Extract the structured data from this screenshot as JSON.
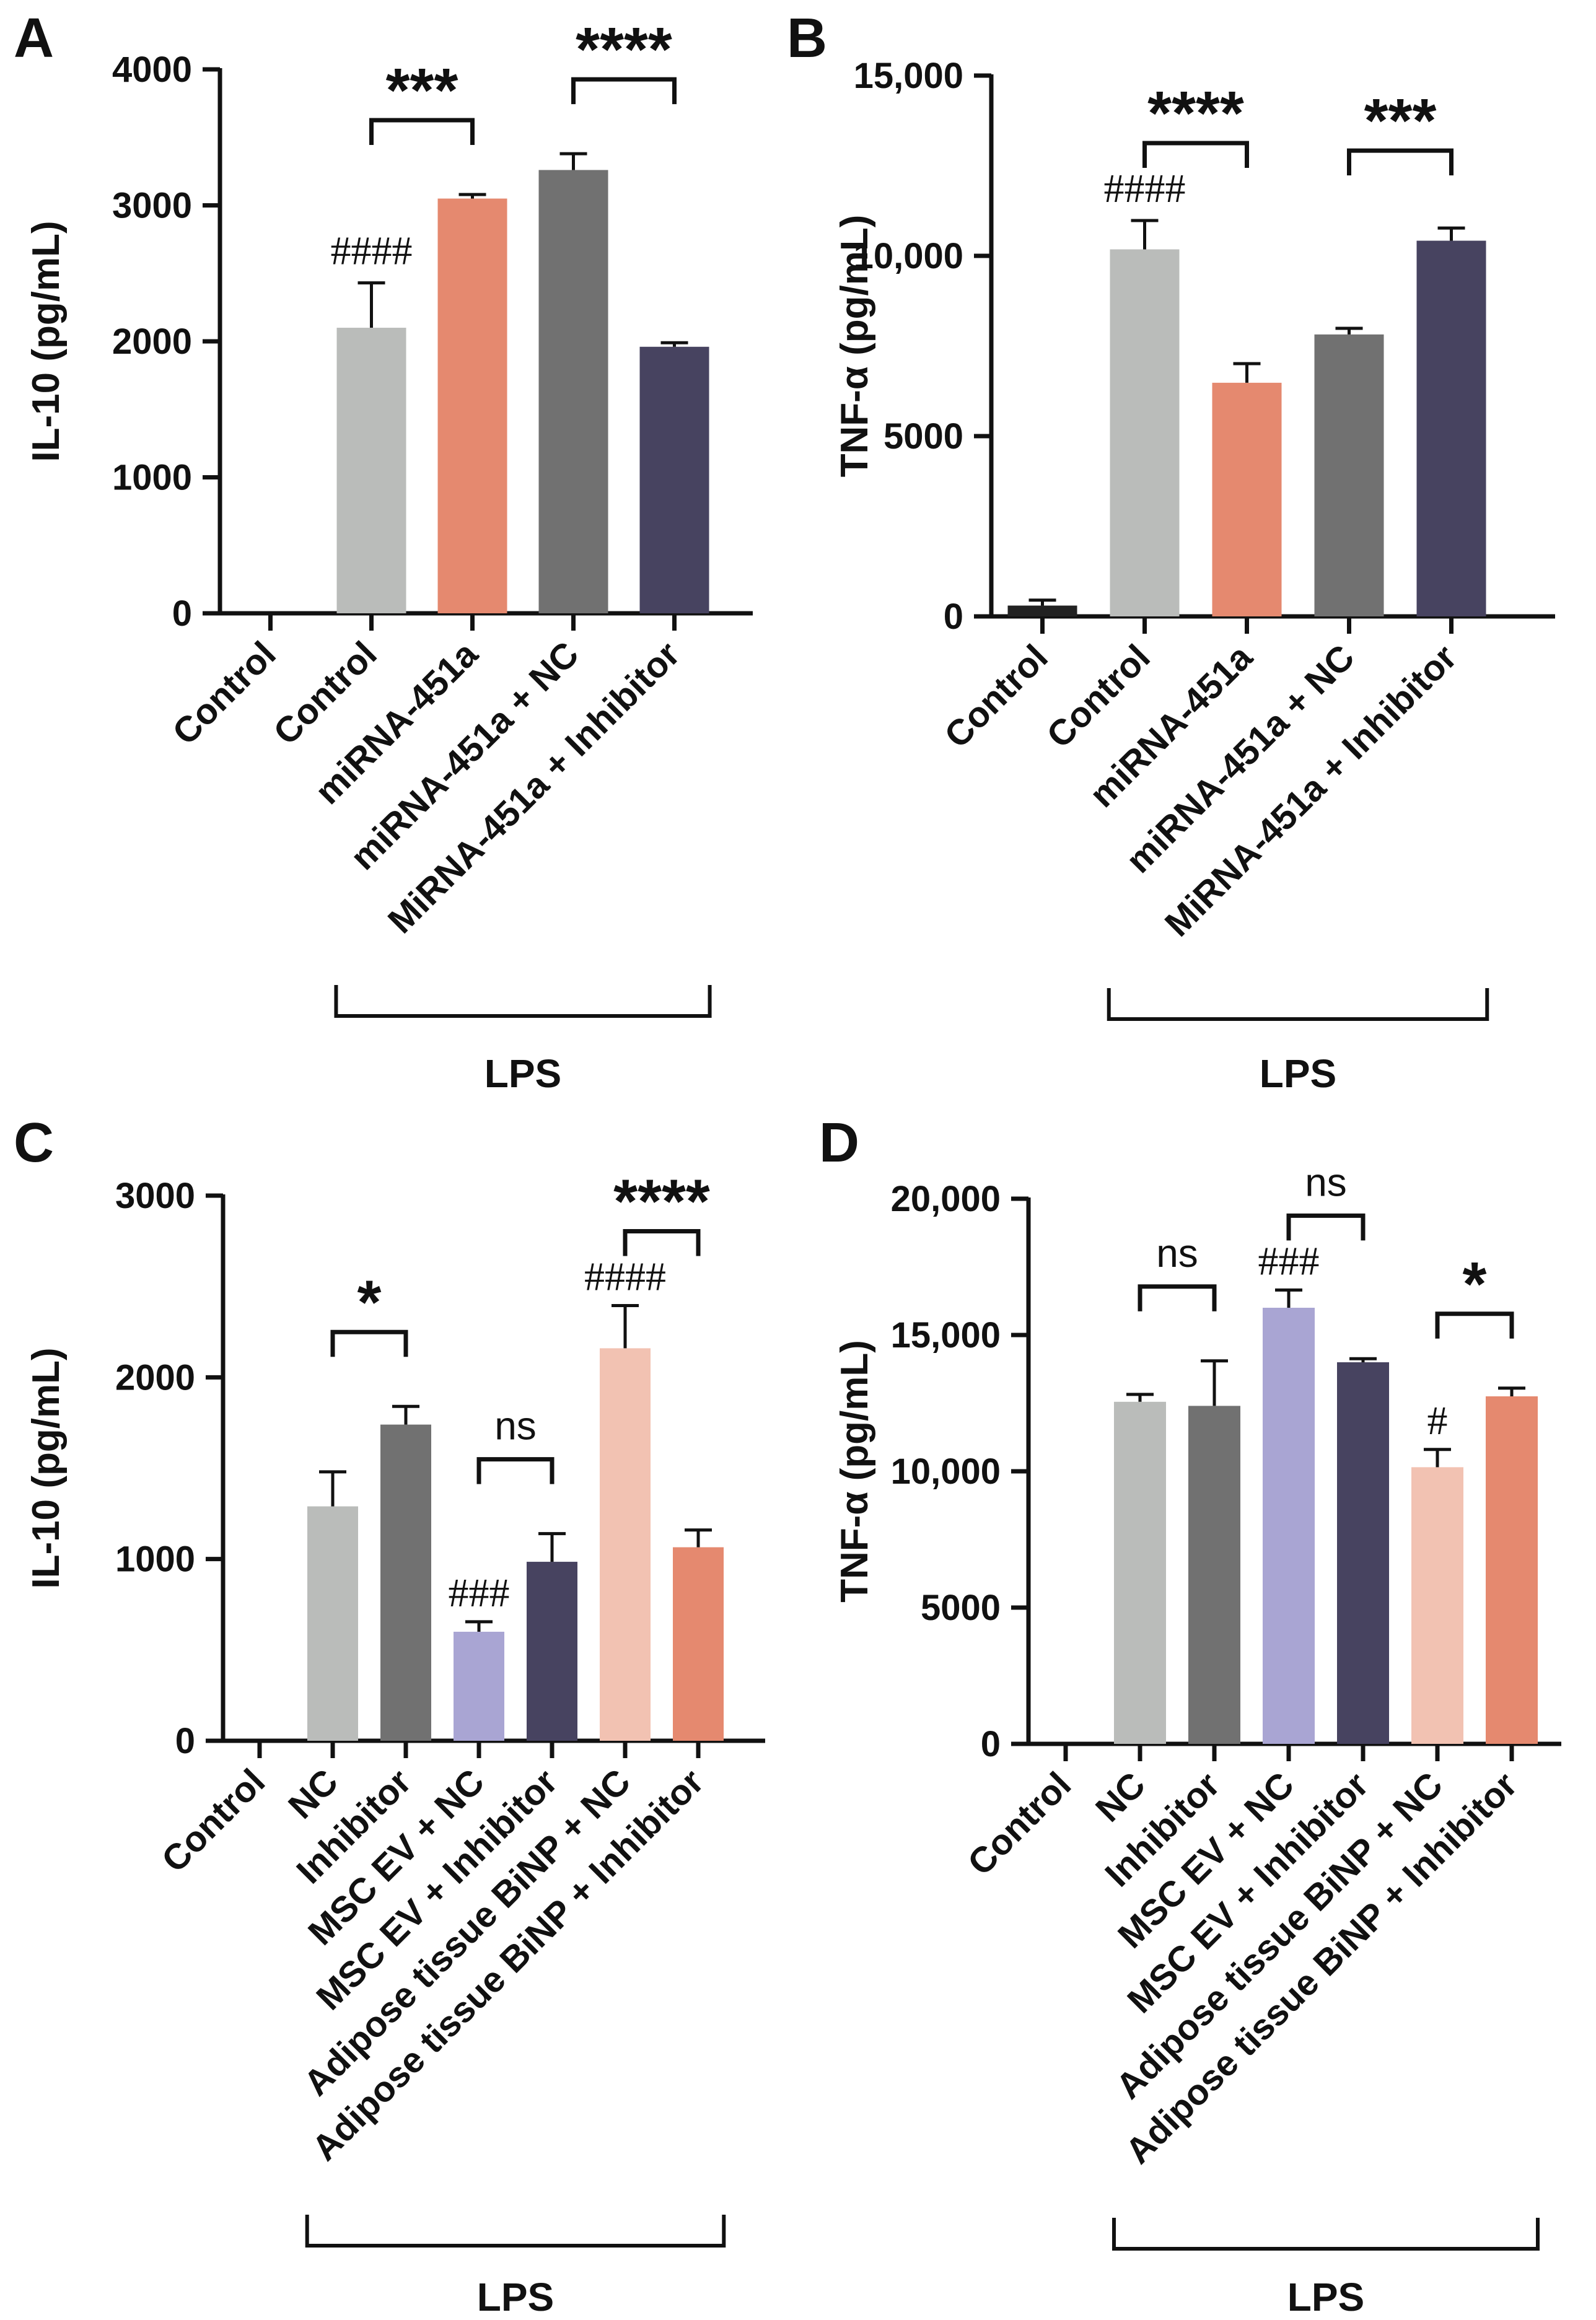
{
  "chart_data": [
    {
      "panel_label": "A",
      "type": "bar",
      "ylabel": "IL-10 (pg/mL)",
      "ylim": [
        0,
        4000
      ],
      "yticks": [
        0,
        1000,
        2000,
        3000,
        4000
      ],
      "ytick_labels": [
        "0",
        "1000",
        "2000",
        "3000",
        "4000"
      ],
      "categories": [
        "Control",
        "Control",
        "miRNA-451a",
        "miRNA-451a + NC",
        "MiRNA-451a + Inhibitor"
      ],
      "values": [
        0,
        2100,
        3050,
        3260,
        1960
      ],
      "errors": [
        0,
        330,
        30,
        120,
        30
      ],
      "colors": [
        "#222222",
        "#babcba",
        "#e5896f",
        "#717171",
        "#474360"
      ],
      "group_label": "LPS",
      "group_span": [
        1,
        4
      ],
      "hash_labels": [
        {
          "bar": 1,
          "text": "####"
        }
      ],
      "significance": [
        {
          "from": 1,
          "to": 2,
          "label": "***"
        },
        {
          "from": 3,
          "to": 4,
          "label": "****"
        }
      ]
    },
    {
      "panel_label": "B",
      "type": "bar",
      "ylabel": "TNF-α (pg/mL)",
      "ylim": [
        0,
        15000
      ],
      "yticks": [
        0,
        5000,
        10000,
        15000
      ],
      "ytick_labels": [
        "0",
        "5000",
        "10,000",
        "15,000"
      ],
      "categories": [
        "Control",
        "Control",
        "miRNA-451a",
        "miRNA-451a +  NC",
        "MiRNA-451a + Inhibitor"
      ],
      "values": [
        300,
        10180,
        6480,
        7820,
        10420
      ],
      "errors": [
        150,
        800,
        530,
        170,
        350
      ],
      "colors": [
        "#222222",
        "#babcba",
        "#e5896f",
        "#717171",
        "#474360"
      ],
      "group_label": "LPS",
      "group_span": [
        1,
        4
      ],
      "hash_labels": [
        {
          "bar": 1,
          "text": "####"
        }
      ],
      "significance": [
        {
          "from": 1,
          "to": 2,
          "label": "****"
        },
        {
          "from": 3,
          "to": 4,
          "label": "***"
        }
      ]
    },
    {
      "panel_label": "C",
      "type": "bar",
      "ylabel": "IL-10 (pg/mL)",
      "ylim": [
        0,
        3000
      ],
      "yticks": [
        0,
        1000,
        2000,
        3000
      ],
      "ytick_labels": [
        "0",
        "1000",
        "2000",
        "3000"
      ],
      "categories": [
        "Control",
        "NC",
        "Inhibitor",
        "MSC EV + NC",
        "MSC EV + Inhibitor",
        "Adipose tissue BiNP + NC",
        "Adipose tissue BiNP + Inhibitor"
      ],
      "values": [
        0,
        1290,
        1740,
        600,
        985,
        2160,
        1065
      ],
      "errors": [
        0,
        190,
        100,
        55,
        155,
        235,
        95
      ],
      "colors": [
        "#222222",
        "#babcba",
        "#717171",
        "#a9a5d3",
        "#474360",
        "#f2c2b2",
        "#e5896f"
      ],
      "group_label": "LPS",
      "group_span": [
        1,
        6
      ],
      "hash_labels": [
        {
          "bar": 3,
          "text": "###"
        },
        {
          "bar": 5,
          "text": "####"
        }
      ],
      "significance": [
        {
          "from": 1,
          "to": 2,
          "label": "*"
        },
        {
          "from": 3,
          "to": 4,
          "label": "ns"
        },
        {
          "from": 5,
          "to": 6,
          "label": "****"
        }
      ]
    },
    {
      "panel_label": "D",
      "type": "bar",
      "ylabel": "TNF-α (pg/mL)",
      "ylim": [
        0,
        20000
      ],
      "yticks": [
        0,
        5000,
        10000,
        15000,
        20000
      ],
      "ytick_labels": [
        "0",
        "5000",
        "10,000",
        "15,000",
        "20,000"
      ],
      "categories": [
        "Control",
        "NC",
        "Inhibitor",
        "MSC EV + NC",
        "MSC EV + Inhibitor",
        "Adipose tissue BiNP + NC",
        "Adipose tissue BiNP + Inhibitor"
      ],
      "values": [
        0,
        12550,
        12400,
        16000,
        14000,
        10150,
        12750
      ],
      "errors": [
        0,
        270,
        1650,
        650,
        130,
        650,
        300
      ],
      "colors": [
        "#222222",
        "#babcba",
        "#717171",
        "#a9a5d3",
        "#474360",
        "#f2c2b2",
        "#e5896f"
      ],
      "group_label": "LPS",
      "group_span": [
        1,
        6
      ],
      "hash_labels": [
        {
          "bar": 3,
          "text": "###"
        },
        {
          "bar": 5,
          "text": "#"
        }
      ],
      "significance": [
        {
          "from": 1,
          "to": 2,
          "label": "ns"
        },
        {
          "from": 3,
          "to": 4,
          "label": "ns"
        },
        {
          "from": 5,
          "to": 6,
          "label": "*"
        }
      ]
    }
  ]
}
